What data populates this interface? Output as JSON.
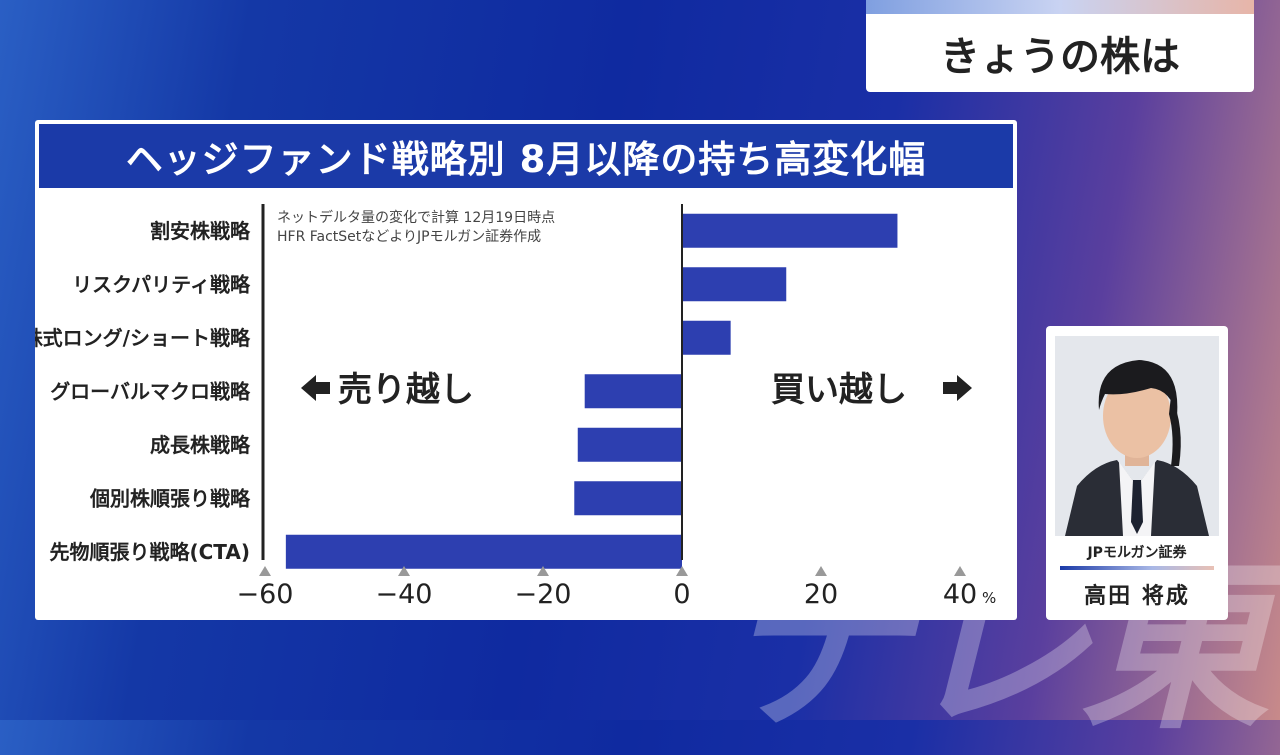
{
  "watermark": "テレ東",
  "program_title": "きょうの株は",
  "chart_data": {
    "type": "bar",
    "orientation": "horizontal",
    "title": "ヘッジファンド戦略別 8月以降の持ち高変化幅",
    "note_line1": "ネットデルタ量の変化で計算 12月19日時点",
    "note_line2": "HFR FactSetなどよりJPモルガン証券作成",
    "categories": [
      "割安株戦略",
      "リスクパリティ戦略",
      "株式ロング/ショート戦略",
      "グローバルマクロ戦略",
      "成長株戦略",
      "個別株順張り戦略",
      "先物順張り戦略(CTA)"
    ],
    "values": [
      31,
      15,
      7,
      -14,
      -15,
      -15.5,
      -57
    ],
    "xlim": [
      -60,
      40
    ],
    "x_ticks": [
      "−60",
      "−40",
      "−20",
      "0",
      "20",
      "40"
    ],
    "x_unit": "%",
    "bar_color": "#2d3fb0",
    "sell_label": "売り越し",
    "buy_label": "買い越し"
  },
  "presenter": {
    "company": "JPモルガン証券",
    "name": "高田 将成"
  }
}
